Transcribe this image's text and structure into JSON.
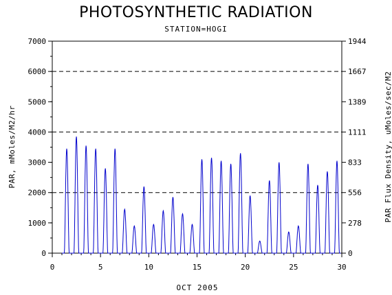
{
  "chart_data": {
    "type": "line",
    "title": "PHOTOSYNTHETIC RADIATION",
    "subtitle": "STATION=HOGI",
    "xlabel": "OCT 2005",
    "ylabel_left": "PAR, mMoles/M2/hr",
    "ylabel_right": "PAR Flux Density, uMoles/sec/M2",
    "xlim": [
      0,
      30
    ],
    "ylim": [
      0,
      7000
    ],
    "x_ticks": [
      "0",
      "5",
      "10",
      "15",
      "20",
      "25",
      "30"
    ],
    "y_ticks_left": [
      "0",
      "1000",
      "2000",
      "3000",
      "4000",
      "5000",
      "6000",
      "7000"
    ],
    "y_ticks_right": [
      "0",
      "278",
      "556",
      "833",
      "1111",
      "1389",
      "1667",
      "1944"
    ],
    "grid_lines_y": [
      2000,
      4000,
      6000
    ],
    "line_color": "#0000cc",
    "series": [
      {
        "daily_peaks": [
          {
            "day": 1.5,
            "peak": 3450
          },
          {
            "day": 2.5,
            "peak": 3850
          },
          {
            "day": 3.5,
            "peak": 3550
          },
          {
            "day": 4.5,
            "peak": 3450
          },
          {
            "day": 5.5,
            "peak": 2800
          },
          {
            "day": 6.5,
            "peak": 3450
          },
          {
            "day": 7.5,
            "peak": 1450
          },
          {
            "day": 8.5,
            "peak": 900
          },
          {
            "day": 9.5,
            "peak": 2200
          },
          {
            "day": 10.5,
            "peak": 950
          },
          {
            "day": 11.5,
            "peak": 1400
          },
          {
            "day": 12.5,
            "peak": 1850
          },
          {
            "day": 13.5,
            "peak": 1300
          },
          {
            "day": 14.5,
            "peak": 950
          },
          {
            "day": 15.5,
            "peak": 3100
          },
          {
            "day": 16.5,
            "peak": 3150
          },
          {
            "day": 17.5,
            "peak": 3050
          },
          {
            "day": 18.5,
            "peak": 2950
          },
          {
            "day": 19.5,
            "peak": 3300
          },
          {
            "day": 20.5,
            "peak": 1900
          },
          {
            "day": 21.5,
            "peak": 400
          },
          {
            "day": 22.5,
            "peak": 2400
          },
          {
            "day": 23.5,
            "peak": 3000
          },
          {
            "day": 24.5,
            "peak": 700
          },
          {
            "day": 25.5,
            "peak": 900
          },
          {
            "day": 26.5,
            "peak": 2950
          },
          {
            "day": 27.5,
            "peak": 2250
          },
          {
            "day": 28.5,
            "peak": 2700
          },
          {
            "day": 29.5,
            "peak": 3050
          }
        ]
      }
    ]
  }
}
